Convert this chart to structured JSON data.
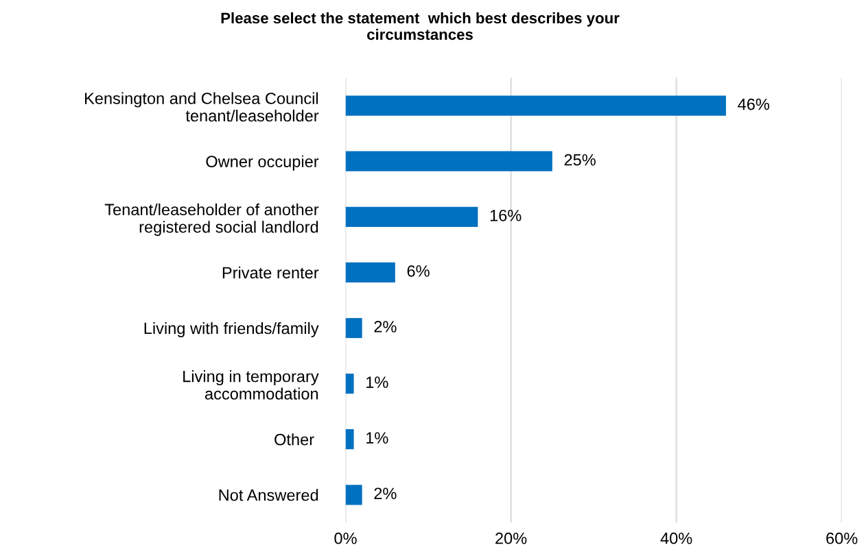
{
  "chart_data": {
    "type": "bar",
    "orientation": "horizontal",
    "title": "Please select the statement  which best describes your\ncircumstances",
    "categories": [
      "Kensington and Chelsea Council\ntenant/leaseholder",
      "Owner occupier",
      "Tenant/leaseholder of another\nregistered social landlord",
      "Private renter",
      "Living with friends/family",
      "Living in temporary\naccommodation",
      "Other ",
      "Not Answered"
    ],
    "values": [
      46,
      25,
      16,
      6,
      2,
      1,
      1,
      2
    ],
    "value_labels": [
      "46%",
      "25%",
      "16%",
      "6%",
      "2%",
      "1%",
      "1%",
      "2%"
    ],
    "color": "#0070c0",
    "xlim": [
      0,
      60
    ],
    "xticks": [
      {
        "value": 0,
        "label": "0%"
      },
      {
        "value": 20,
        "label": "20%"
      },
      {
        "value": 40,
        "label": "40%"
      },
      {
        "value": 60,
        "label": "60%"
      }
    ],
    "grid": "x"
  }
}
